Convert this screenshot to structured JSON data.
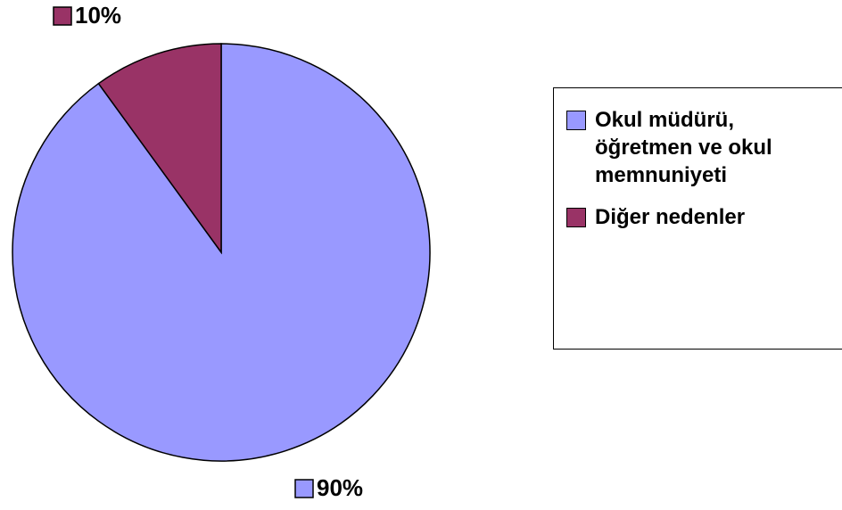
{
  "chart_data": {
    "type": "pie",
    "categories": [
      "Okul müdürü, öğretmen ve okul memnuniyeti",
      "Diğer nedenler"
    ],
    "values": [
      90,
      10
    ],
    "value_labels": [
      "90%",
      "10%"
    ],
    "colors": [
      "#9999ff",
      "#993366"
    ]
  }
}
